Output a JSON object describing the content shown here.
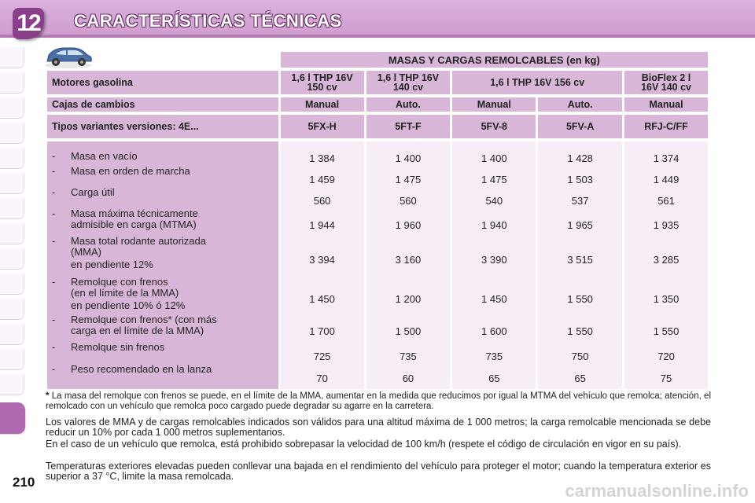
{
  "header": {
    "chapter": "12",
    "title": "CARACTERÍSTICAS TÉCNICAS"
  },
  "table": {
    "title": "MASAS Y CARGAS REMOLCABLES (en kg)",
    "motor_label": "Motores gasolina",
    "motors": [
      {
        "line1": "1,6 l THP 16V",
        "line2": "150 cv",
        "span": 1
      },
      {
        "line1": "1,6 l THP 16V",
        "line2": "140 cv",
        "span": 1
      },
      {
        "line1": "1,6 l THP 16V 156 cv",
        "line2": "",
        "span": 2
      },
      {
        "line1": "BioFlex 2 l",
        "line2": "16V 140 cv",
        "span": 1
      }
    ],
    "cajas_label": "Cajas de cambios",
    "cajas": [
      "Manual",
      "Auto.",
      "Manual",
      "Auto.",
      "Manual"
    ],
    "tipos_label": "Tipos variantes versiones: 4E...",
    "tipos": [
      "5FX-H",
      "5FT-F",
      "5FV-8",
      "5FV-A",
      "RFJ-C/FF"
    ],
    "rows": [
      {
        "label": [
          "Masa en vacío"
        ],
        "values": [
          "1 384",
          "1 400",
          "1 400",
          "1 428",
          "1 374"
        ]
      },
      {
        "label": [
          "Masa en orden de marcha"
        ],
        "values": [
          "1 459",
          "1 475",
          "1 475",
          "1 503",
          "1 449"
        ]
      },
      {
        "label": [
          "Carga útil"
        ],
        "values": [
          "560",
          "560",
          "540",
          "537",
          "561"
        ]
      },
      {
        "label": [
          "Masa máxima técnicamente",
          "admisible en carga (MTMA)"
        ],
        "values": [
          "1 944",
          "1 960",
          "1 940",
          "1 965",
          "1 935"
        ]
      },
      {
        "label": [
          "Masa total rodante autorizada",
          "(MMA)",
          "en pendiente 12%"
        ],
        "values": [
          "3 394",
          "3 160",
          "3 390",
          "3 515",
          "3 285"
        ]
      },
      {
        "label": [
          "Remolque con frenos",
          "(en el límite de la MMA)",
          "en pendiente 10% ó 12%"
        ],
        "values": [
          "1 450",
          "1 200",
          "1 450",
          "1 550",
          "1 350"
        ]
      },
      {
        "label": [
          "Remolque con frenos* (con más",
          "carga en el límite de la MMA)"
        ],
        "values": [
          "1 700",
          "1 500",
          "1 600",
          "1 550",
          "1 550"
        ]
      },
      {
        "label": [
          "Remolque sin frenos"
        ],
        "values": [
          "725",
          "735",
          "735",
          "750",
          "720"
        ]
      },
      {
        "label": [
          "Peso recomendado en la lanza"
        ],
        "values": [
          "70",
          "60",
          "65",
          "65",
          "75"
        ]
      }
    ]
  },
  "footnote": {
    "star": "*",
    "text": "La masa del remolque con frenos se puede, en el límite de la MMA, aumentar en la medida que reducimos por igual la MTMA del vehículo que remolca; atención, el remolcado con un vehículo que remolca poco cargado puede degradar su agarre en la carretera."
  },
  "paragraphs": [
    "Los valores de MMA y de cargas remolcables indicados son válidos para una altitud máxima de 1 000 metros; la carga remolcable mencionada se debe reducir un 10% por cada 1 000 metros suplementarios.",
    "En el caso de un vehículo que remolca, está prohibido sobrepasar la velocidad de 100 km/h (respete el código de circulación en vigor en su país).",
    "Temperaturas exteriores elevadas pueden conllevar una bajada en el rendimiento del vehículo para proteger el motor; cuando la temperatura exterior es superior a 37 °C, limite la masa remolcada."
  ],
  "page_number": "210",
  "watermark": "carmanualsonline.info",
  "icons": {
    "car": "car-icon"
  },
  "colors": {
    "accent": "#b06ab0",
    "header_bg": "#d9b0d9",
    "label_bg": "#d7b6d7",
    "value_bg": "#f7edf7"
  }
}
